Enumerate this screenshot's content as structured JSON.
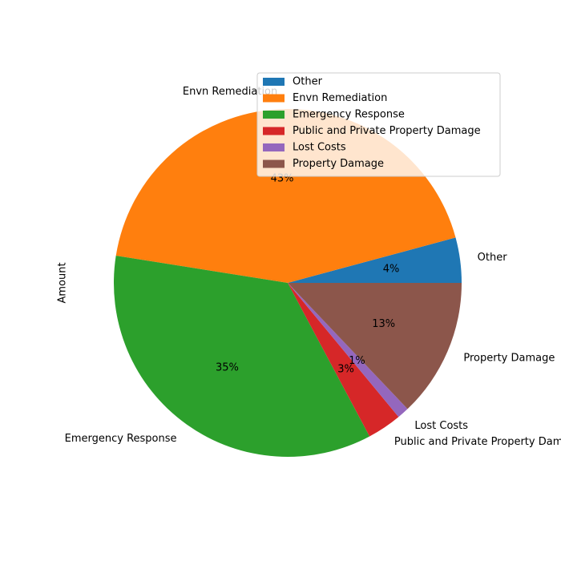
{
  "chart_data": {
    "type": "pie",
    "ylabel": "Amount",
    "legend_position": "upper-right",
    "start_angle_deg": 0,
    "direction": "counterclockwise",
    "slices": [
      {
        "label": "Other",
        "value": 4.2,
        "pct_label": "4%",
        "color": "#1f77b4"
      },
      {
        "label": "Envn Remediation",
        "value": 43.3,
        "pct_label": "43%",
        "color": "#ff7f0e"
      },
      {
        "label": "Emergency Response",
        "value": 35.3,
        "pct_label": "35%",
        "color": "#2ca02c"
      },
      {
        "label": "Public and Private Property Damage",
        "value": 3.2,
        "pct_label": "3%",
        "color": "#d62728"
      },
      {
        "label": "Lost Costs",
        "value": 1.1,
        "pct_label": "1%",
        "color": "#9467bd"
      },
      {
        "label": "Property Damage",
        "value": 12.9,
        "pct_label": "13%",
        "color": "#8c564b"
      }
    ]
  }
}
